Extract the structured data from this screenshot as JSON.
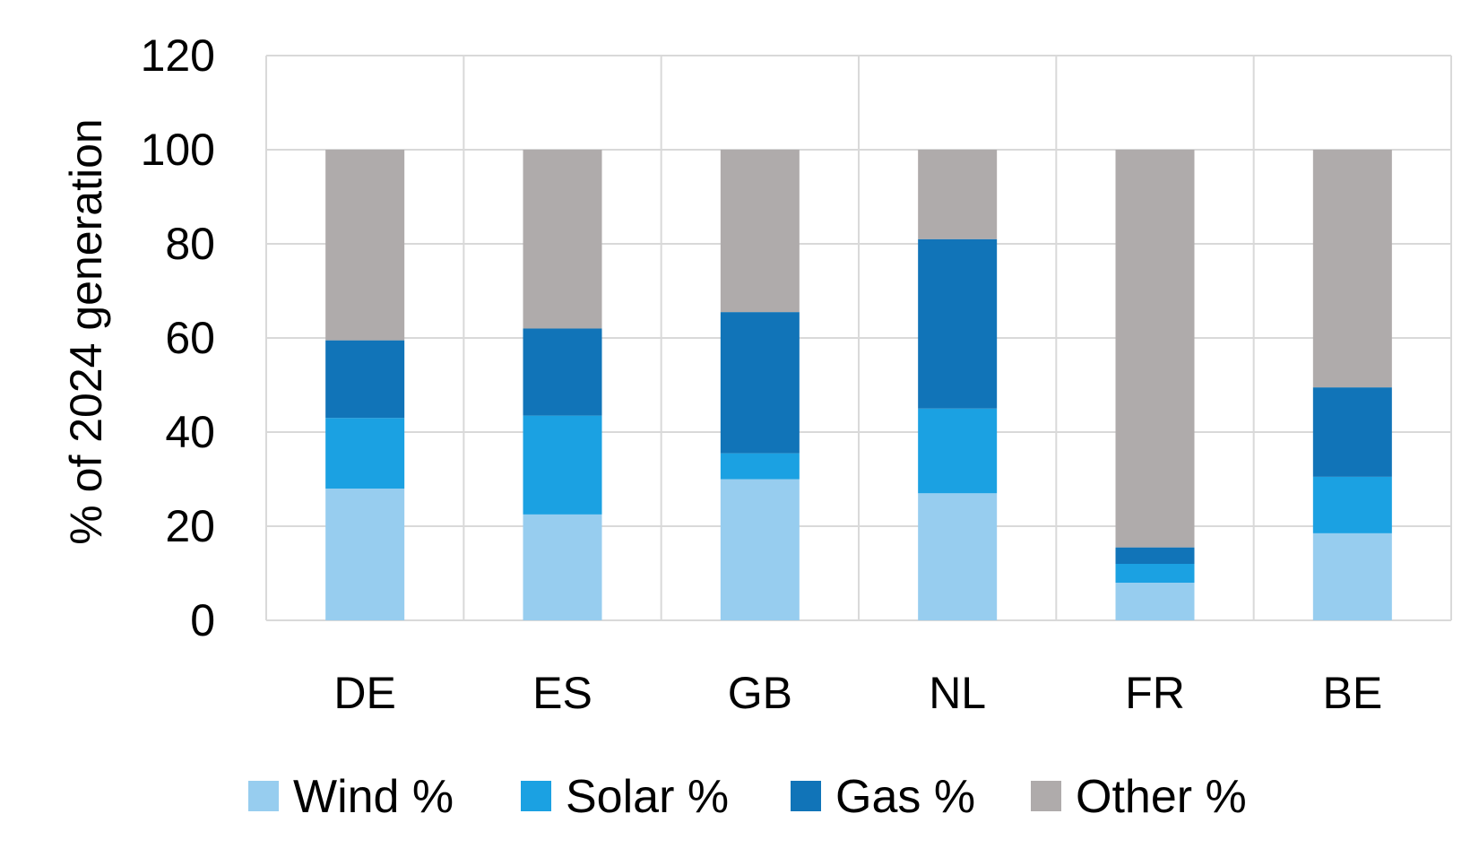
{
  "chart_data": {
    "type": "bar",
    "stacked": true,
    "categories": [
      "DE",
      "ES",
      "GB",
      "NL",
      "FR",
      "BE"
    ],
    "series": [
      {
        "name": "Wind %",
        "color": "#97CDEF",
        "values": [
          28,
          22.5,
          30,
          27,
          8,
          18.5
        ]
      },
      {
        "name": "Solar %",
        "color": "#1BA1E2",
        "values": [
          15,
          21,
          5.5,
          18,
          4,
          12
        ]
      },
      {
        "name": "Gas %",
        "color": "#1174B8",
        "values": [
          16.5,
          18.5,
          30,
          36,
          3.5,
          19
        ]
      },
      {
        "name": "Other %",
        "color": "#AFABAB",
        "values": [
          40.5,
          38,
          34.5,
          19,
          84.5,
          50.5
        ]
      }
    ],
    "title": "",
    "xlabel": "",
    "ylabel": "% of 2024 generation",
    "ylim": [
      0,
      120
    ],
    "yticks": [
      0,
      20,
      40,
      60,
      80,
      100,
      120
    ],
    "grid": true,
    "legend_position": "bottom",
    "gridline_color": "#D9D9D9"
  }
}
